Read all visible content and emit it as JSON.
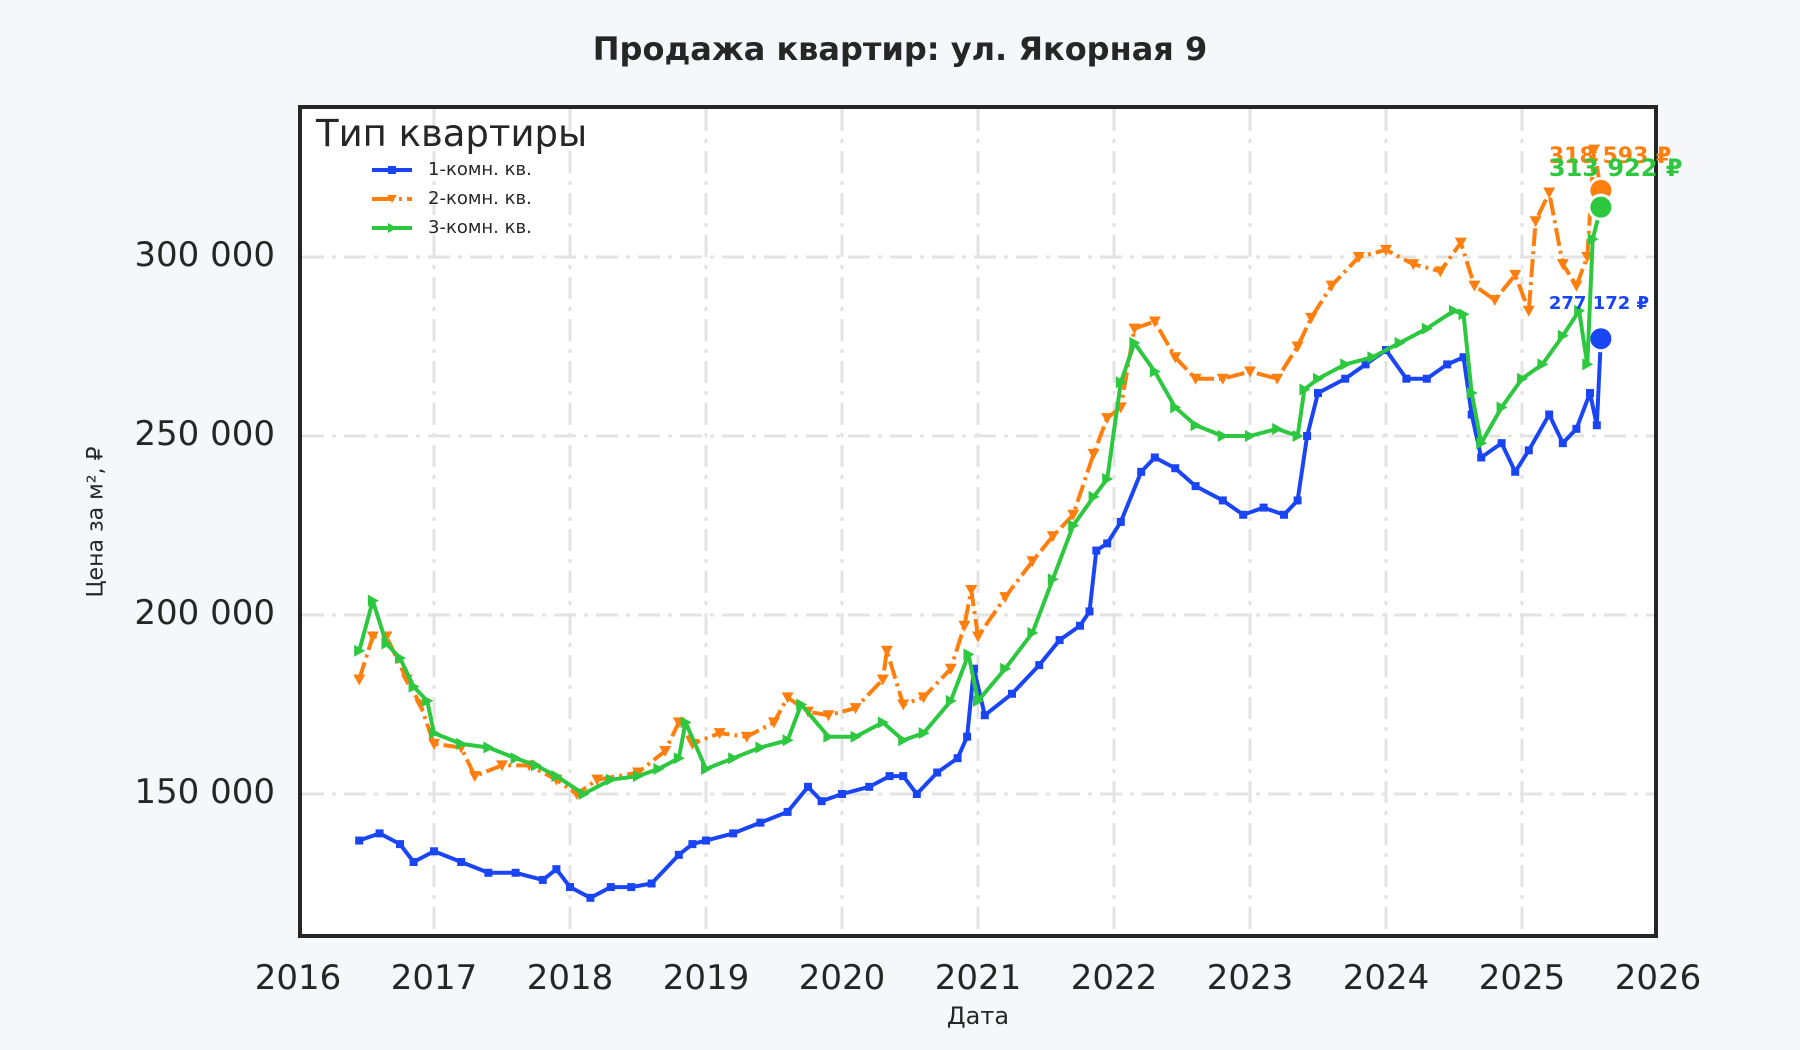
{
  "chart_data": {
    "type": "line",
    "title": "Продажа квартир: ул. Якорная 9",
    "xlabel": "Дата",
    "ylabel": "Цена за м², ₽",
    "xlim": [
      2016,
      2026
    ],
    "ylim": [
      110000,
      342000
    ],
    "x_ticks": [
      "2016",
      "2017",
      "2018",
      "2019",
      "2020",
      "2021",
      "2022",
      "2023",
      "2024",
      "2025",
      "2026"
    ],
    "y_ticks": [
      "150 000",
      "200 000",
      "250 000",
      "300 000"
    ],
    "y_tick_values": [
      150000,
      200000,
      250000,
      300000
    ],
    "grid": true,
    "legend": {
      "title": "Тип квартиры",
      "position": "upper left"
    },
    "series": [
      {
        "name": "1-комн. кв.",
        "color": "#1a45f5",
        "marker": "square",
        "dash": "solid",
        "x": [
          2016.45,
          2016.6,
          2016.75,
          2016.85,
          2017.0,
          2017.2,
          2017.4,
          2017.6,
          2017.8,
          2017.9,
          2018.0,
          2018.15,
          2018.3,
          2018.45,
          2018.6,
          2018.8,
          2018.9,
          2019.0,
          2019.2,
          2019.4,
          2019.6,
          2019.75,
          2019.85,
          2020.0,
          2020.2,
          2020.35,
          2020.45,
          2020.55,
          2020.7,
          2020.85,
          2020.92,
          2020.97,
          2021.05,
          2021.25,
          2021.45,
          2021.6,
          2021.75,
          2021.82,
          2021.87,
          2021.95,
          2022.05,
          2022.2,
          2022.3,
          2022.45,
          2022.6,
          2022.8,
          2022.95,
          2023.1,
          2023.25,
          2023.35,
          2023.42,
          2023.5,
          2023.7,
          2023.85,
          2024.0,
          2024.15,
          2024.3,
          2024.45,
          2024.57,
          2024.63,
          2024.7,
          2024.85,
          2024.95,
          2025.05,
          2025.2,
          2025.3,
          2025.4,
          2025.5,
          2025.55,
          2025.58
        ],
        "y": [
          137000,
          139000,
          136000,
          131000,
          134000,
          131000,
          128000,
          128000,
          126000,
          129000,
          124000,
          121000,
          124000,
          124000,
          125000,
          133000,
          136000,
          137000,
          139000,
          142000,
          145000,
          152000,
          148000,
          150000,
          152000,
          155000,
          155000,
          150000,
          156000,
          160000,
          166000,
          185000,
          172000,
          178000,
          186000,
          193000,
          197000,
          201000,
          218000,
          220000,
          226000,
          240000,
          244000,
          241000,
          236000,
          232000,
          228000,
          230000,
          228000,
          232000,
          250000,
          262000,
          266000,
          270000,
          274000,
          266000,
          266000,
          270000,
          272000,
          256000,
          244000,
          248000,
          240000,
          246000,
          256000,
          248000,
          252000,
          262000,
          253000,
          277172
        ],
        "end_label": "277 172 ₽"
      },
      {
        "name": "2-комн. кв.",
        "color": "#ff7f0e",
        "marker": "triangle-down",
        "dash": "dashdot",
        "x": [
          2016.45,
          2016.55,
          2016.65,
          2016.8,
          2016.9,
          2017.0,
          2017.2,
          2017.3,
          2017.5,
          2017.7,
          2017.9,
          2018.05,
          2018.2,
          2018.5,
          2018.7,
          2018.8,
          2018.9,
          2019.1,
          2019.3,
          2019.5,
          2019.6,
          2019.75,
          2019.9,
          2020.1,
          2020.3,
          2020.33,
          2020.45,
          2020.6,
          2020.8,
          2020.9,
          2020.95,
          2021.0,
          2021.2,
          2021.4,
          2021.55,
          2021.7,
          2021.85,
          2021.95,
          2022.05,
          2022.15,
          2022.3,
          2022.45,
          2022.6,
          2022.8,
          2023.0,
          2023.2,
          2023.35,
          2023.45,
          2023.6,
          2023.8,
          2024.0,
          2024.2,
          2024.4,
          2024.55,
          2024.65,
          2024.8,
          2024.95,
          2025.05,
          2025.1,
          2025.2,
          2025.3,
          2025.4,
          2025.48,
          2025.53,
          2025.58
        ],
        "y": [
          182000,
          194000,
          194000,
          182000,
          175000,
          164000,
          163000,
          155000,
          158000,
          158000,
          154000,
          150000,
          154000,
          156000,
          162000,
          170000,
          164000,
          167000,
          166000,
          170000,
          177000,
          173000,
          172000,
          174000,
          182000,
          190000,
          175000,
          177000,
          185000,
          197000,
          207000,
          194000,
          205000,
          215000,
          222000,
          228000,
          245000,
          255000,
          258000,
          280000,
          282000,
          272000,
          266000,
          266000,
          268000,
          266000,
          275000,
          283000,
          292000,
          300000,
          302000,
          298000,
          296000,
          304000,
          292000,
          288000,
          295000,
          285000,
          310000,
          318000,
          298000,
          292000,
          300000,
          330000,
          318593
        ],
        "end_label": "318 593 ₽"
      },
      {
        "name": "3-комн. кв.",
        "color": "#2ec840",
        "marker": "triangle-right",
        "dash": "solid",
        "x": [
          2016.45,
          2016.55,
          2016.65,
          2016.75,
          2016.85,
          2016.95,
          2017.0,
          2017.2,
          2017.4,
          2017.6,
          2017.75,
          2017.9,
          2018.1,
          2018.3,
          2018.5,
          2018.65,
          2018.8,
          2018.85,
          2019.0,
          2019.2,
          2019.4,
          2019.6,
          2019.7,
          2019.9,
          2020.1,
          2020.3,
          2020.45,
          2020.6,
          2020.8,
          2020.93,
          2021.0,
          2021.2,
          2021.4,
          2021.55,
          2021.7,
          2021.85,
          2021.95,
          2022.05,
          2022.15,
          2022.3,
          2022.45,
          2022.6,
          2022.8,
          2023.0,
          2023.2,
          2023.35,
          2023.4,
          2023.5,
          2023.7,
          2023.9,
          2024.1,
          2024.3,
          2024.5,
          2024.57,
          2024.63,
          2024.7,
          2024.85,
          2025.0,
          2025.15,
          2025.3,
          2025.42,
          2025.48,
          2025.52,
          2025.58
        ],
        "y": [
          190000,
          204000,
          192000,
          188000,
          180000,
          176000,
          167000,
          164000,
          163000,
          160000,
          158000,
          155000,
          150000,
          154000,
          155000,
          157000,
          160000,
          170000,
          157000,
          160000,
          163000,
          165000,
          175000,
          166000,
          166000,
          170000,
          165000,
          167000,
          176000,
          189000,
          176000,
          185000,
          195000,
          210000,
          225000,
          233000,
          238000,
          265000,
          276000,
          268000,
          258000,
          253000,
          250000,
          250000,
          252000,
          250000,
          263000,
          266000,
          270000,
          272000,
          276000,
          280000,
          285000,
          284000,
          262000,
          248000,
          258000,
          266000,
          270000,
          278000,
          285000,
          270000,
          305000,
          313922
        ],
        "end_label": "313 922 ₽"
      }
    ]
  }
}
